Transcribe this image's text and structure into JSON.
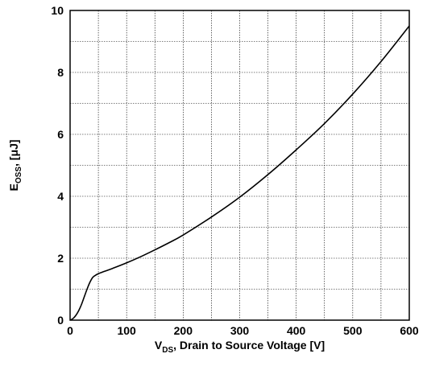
{
  "chart_data": {
    "type": "line",
    "title": "",
    "xlabel": {
      "main": "V",
      "sub": "DS",
      "rest": ", Drain to Source Voltage [V]"
    },
    "ylabel": {
      "main": "E",
      "sub": "OSS",
      "rest": ", [μJ]"
    },
    "xlim": [
      0,
      600
    ],
    "ylim": [
      0,
      10
    ],
    "x_ticks": [
      0,
      100,
      200,
      300,
      400,
      500,
      600
    ],
    "y_ticks": [
      0,
      2,
      4,
      6,
      8,
      10
    ],
    "x_ticks_labels": [
      "0",
      "100",
      "200",
      "300",
      "400",
      "500",
      "600"
    ],
    "y_ticks_labels": [
      "0",
      "2",
      "4",
      "6",
      "8",
      "10"
    ],
    "grid": true,
    "grid_x_step": 50,
    "grid_y_step": 1,
    "series": [
      {
        "name": "",
        "color": "#000000",
        "x": [
          0,
          5,
          10,
          15,
          20,
          25,
          30,
          35,
          40,
          45,
          50,
          60,
          75,
          100,
          125,
          150,
          175,
          200,
          250,
          300,
          350,
          400,
          450,
          500,
          550,
          600
        ],
        "y": [
          0,
          0.05,
          0.15,
          0.3,
          0.5,
          0.75,
          1.0,
          1.22,
          1.38,
          1.45,
          1.5,
          1.57,
          1.67,
          1.85,
          2.05,
          2.27,
          2.5,
          2.75,
          3.33,
          3.97,
          4.7,
          5.5,
          6.35,
          7.3,
          8.35,
          9.5
        ]
      }
    ]
  }
}
